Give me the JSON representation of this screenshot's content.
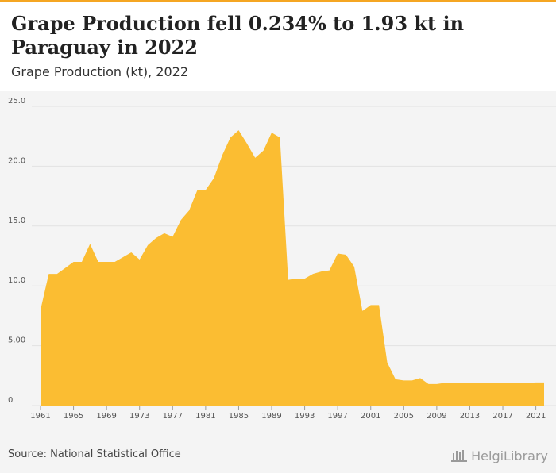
{
  "header": {
    "title": "Grape Production fell 0.234% to 1.93 kt in Paraguay in 2022",
    "subtitle": "Grape Production (kt), 2022"
  },
  "footer": {
    "source": "Source: National Statistical Office",
    "logo_text": "HelgiLibrary"
  },
  "colors": {
    "area": "#fbbd32",
    "accent": "#f5a623",
    "background": "#f4f4f4",
    "grid": "#e2e2e2"
  },
  "chart_data": {
    "type": "area",
    "title": "Grape Production (kt), 2022",
    "xlabel": "",
    "ylabel": "",
    "ylim": [
      0,
      25
    ],
    "grid": true,
    "y_ticks": [
      "0",
      "5.00",
      "10.0",
      "15.0",
      "20.0",
      "25.0"
    ],
    "x_ticks": [
      "1961",
      "1965",
      "1969",
      "1973",
      "1977",
      "1981",
      "1985",
      "1989",
      "1993",
      "1997",
      "2001",
      "2005",
      "2009",
      "2013",
      "2017",
      "2021"
    ],
    "series": [
      {
        "x": [
          1961,
          1962,
          1963,
          1964,
          1965,
          1966,
          1967,
          1968,
          1969,
          1970,
          1971,
          1972,
          1973,
          1974,
          1975,
          1976,
          1977,
          1978,
          1979,
          1980,
          1981,
          1982,
          1983,
          1984,
          1985,
          1986,
          1987,
          1988,
          1989,
          1990,
          1991,
          1992,
          1993,
          1994,
          1995,
          1996,
          1997,
          1998,
          1999,
          2000,
          2001,
          2002,
          2003,
          2004,
          2005,
          2006,
          2007,
          2008,
          2009,
          2010,
          2011,
          2012,
          2013,
          2014,
          2015,
          2016,
          2017,
          2018,
          2019,
          2020,
          2021,
          2022
        ],
        "values": [
          8.0,
          11.0,
          11.0,
          11.5,
          12.0,
          12.0,
          13.5,
          12.0,
          12.0,
          12.0,
          12.4,
          12.8,
          12.2,
          13.4,
          14.0,
          14.4,
          14.1,
          15.5,
          16.3,
          18.0,
          18.0,
          19.0,
          20.9,
          22.4,
          23.0,
          21.9,
          20.7,
          21.3,
          22.8,
          22.4,
          10.5,
          10.6,
          10.6,
          11.0,
          11.2,
          11.3,
          12.7,
          12.6,
          11.6,
          7.9,
          8.4,
          8.4,
          3.6,
          2.2,
          2.1,
          2.1,
          2.3,
          1.8,
          1.8,
          1.9,
          1.9,
          1.9,
          1.9,
          1.9,
          1.9,
          1.9,
          1.9,
          1.9,
          1.9,
          1.9,
          1.93,
          1.93
        ]
      }
    ]
  }
}
